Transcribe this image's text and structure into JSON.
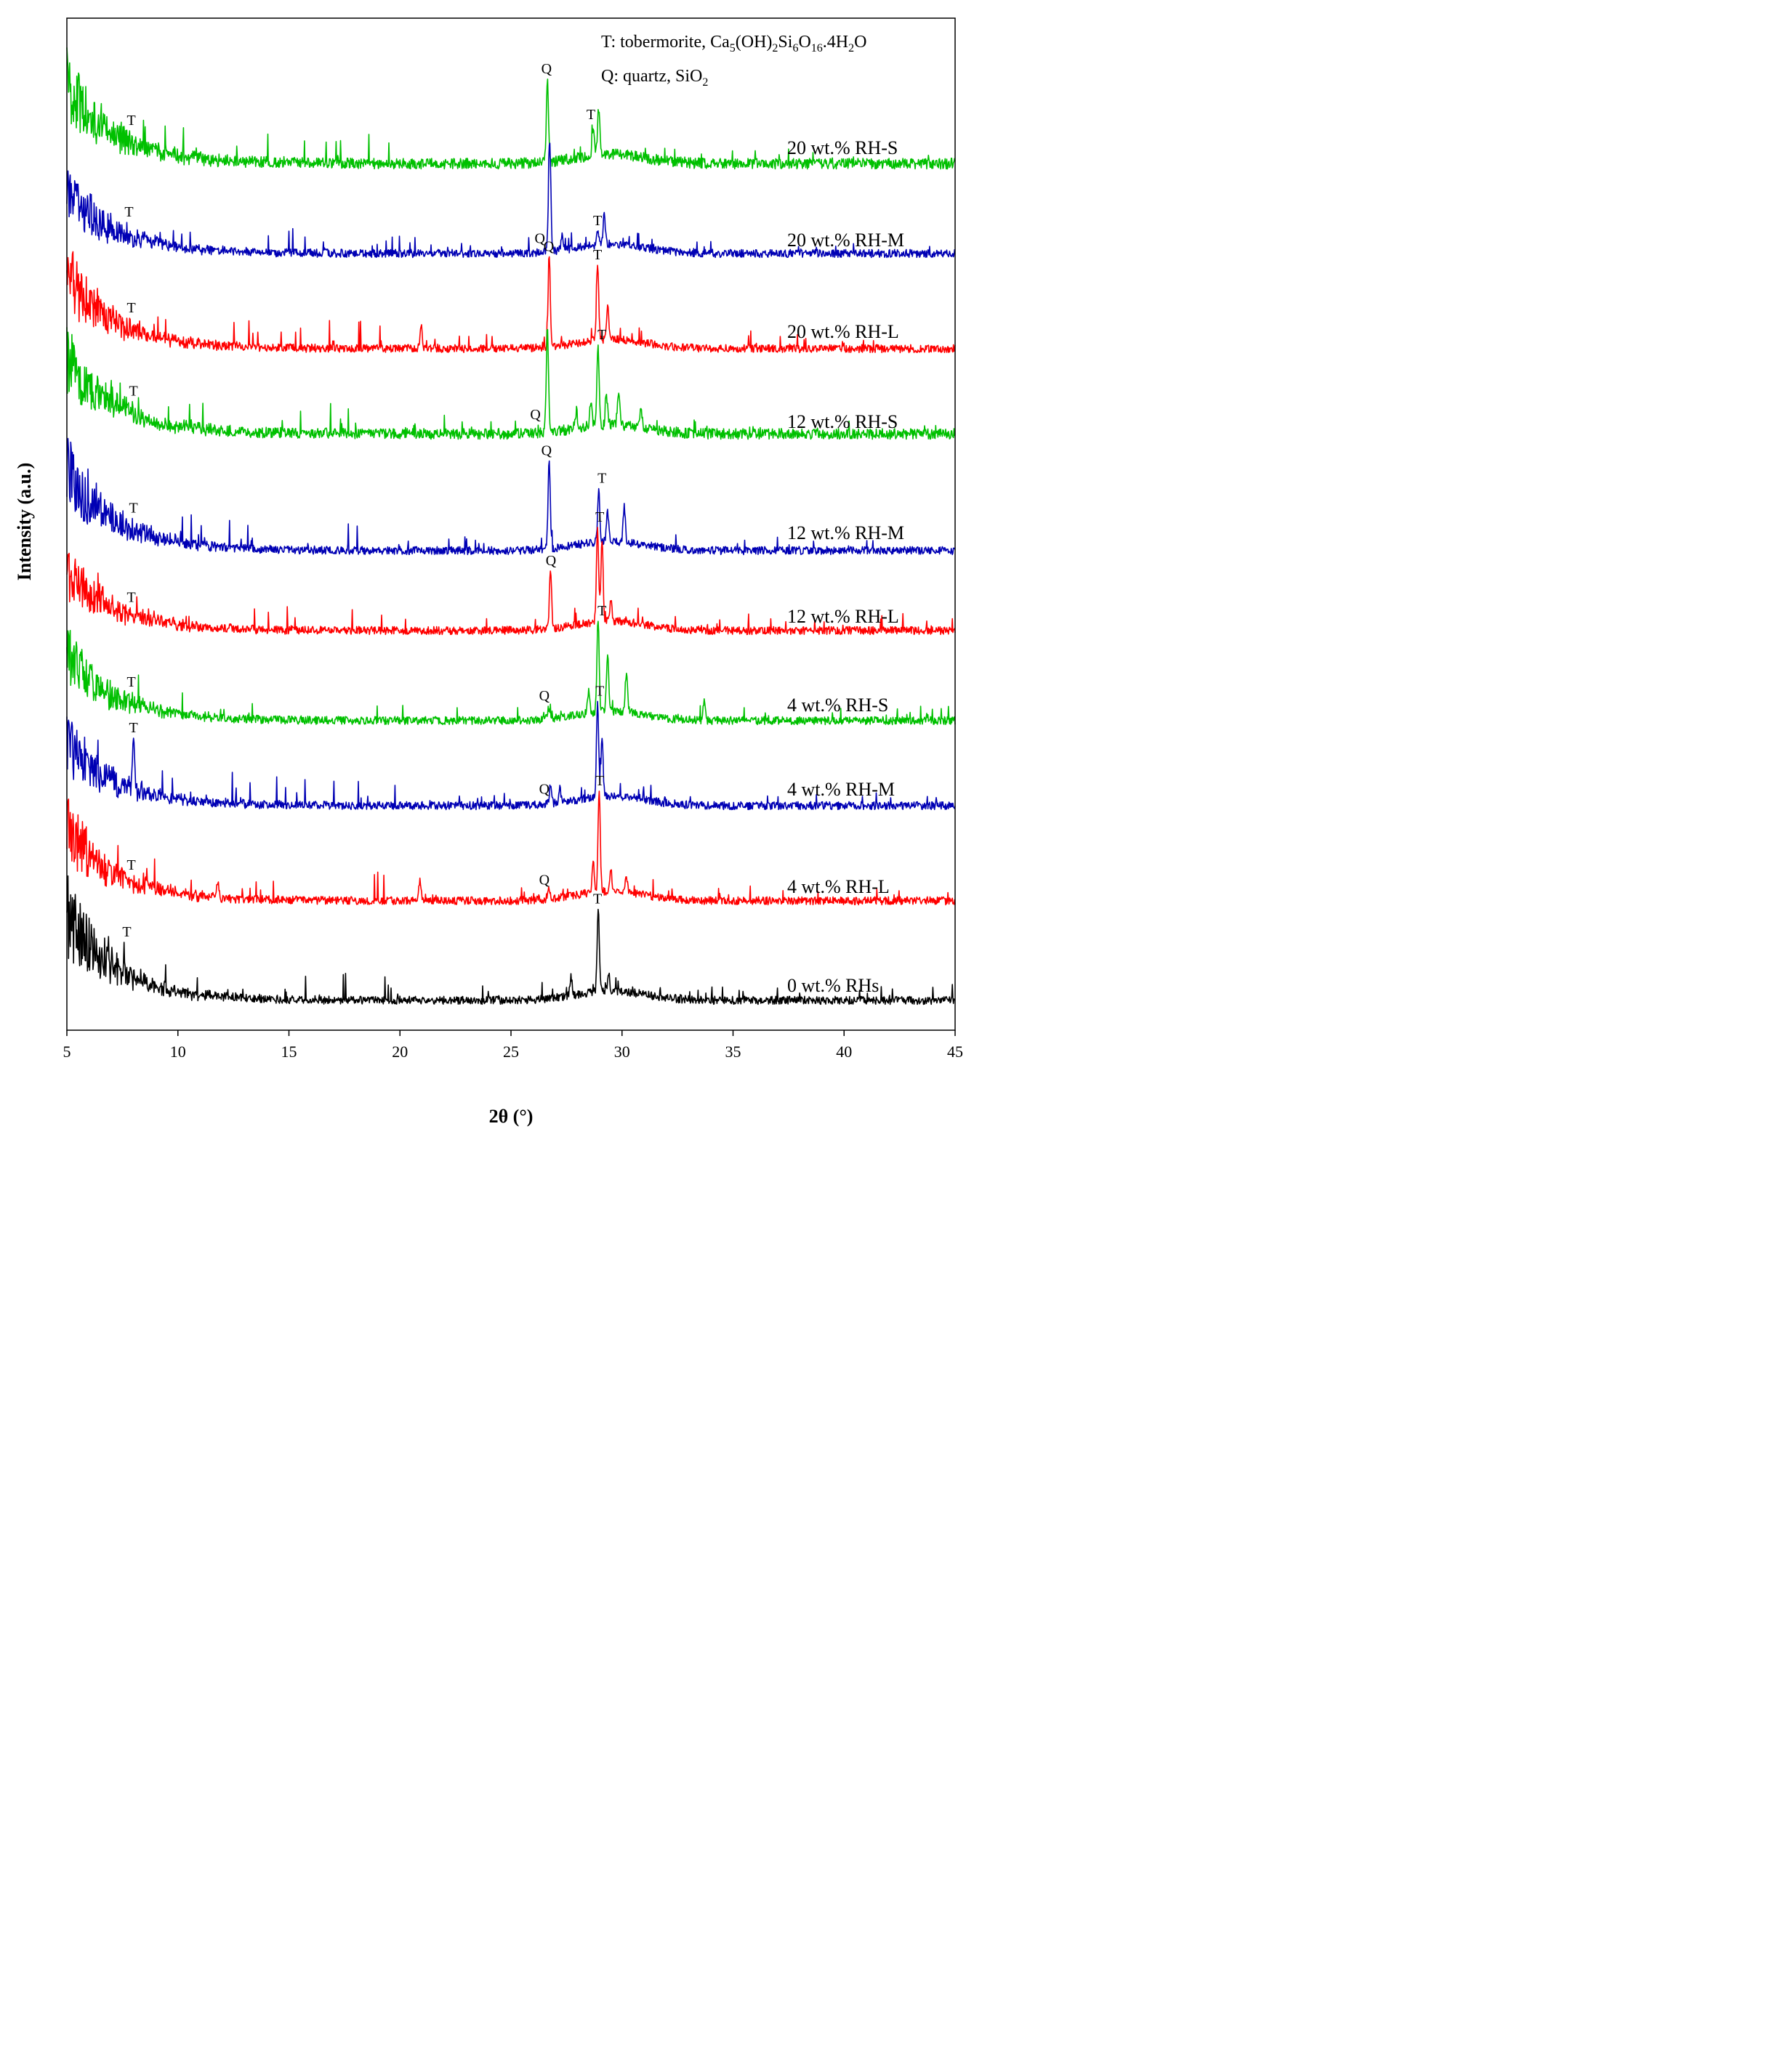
{
  "chart_data": {
    "type": "line",
    "xlabel": "2θ (°)",
    "ylabel": "Intensity (a.u.)",
    "xlim": [
      5,
      45
    ],
    "xticks": [
      5,
      10,
      15,
      20,
      25,
      30,
      35,
      40,
      45
    ],
    "y_ticks_shown": false,
    "grid": false,
    "legend": {
      "placement": "top-right",
      "entries": [
        {
          "prefix": "T: tobermorite, ",
          "formula": [
            [
              "Ca",
              ""
            ],
            [
              "5",
              "sub"
            ],
            [
              "(OH)",
              ""
            ],
            [
              "2",
              "sub"
            ],
            [
              "Si",
              ""
            ],
            [
              "6",
              "sub"
            ],
            [
              "O",
              ""
            ],
            [
              "16",
              "sub"
            ],
            [
              ".4H",
              ""
            ],
            [
              "2",
              "sub"
            ],
            [
              "O",
              ""
            ]
          ]
        },
        {
          "prefix": "Q: quartz, ",
          "formula": [
            [
              "SiO",
              ""
            ],
            [
              "2",
              "sub"
            ]
          ]
        }
      ]
    },
    "colors": {
      "green": "#00c000",
      "blue": "#0000b4",
      "red": "#ff0000",
      "black": "#000000"
    },
    "series": [
      {
        "name": "20 wt.% RH-S",
        "color": "#00c000",
        "baseline": 0.4,
        "low_angle_rise": 3.2,
        "peaks": [
          {
            "x": 26.64,
            "y": 3.0
          },
          {
            "x": 28.7,
            "y": 1.0
          },
          {
            "x": 28.95,
            "y": 1.7
          }
        ],
        "labels": [
          {
            "text": "T",
            "x": 7.9
          },
          {
            "text": "Q",
            "x": 26.6
          },
          {
            "text": "T",
            "x": 28.6
          }
        ]
      },
      {
        "name": "20 wt.% RH-M",
        "color": "#0000b4",
        "baseline": 0.3,
        "low_angle_rise": 2.6,
        "peaks": [
          {
            "x": 26.74,
            "y": 4.2
          },
          {
            "x": 27.3,
            "y": 0.6
          },
          {
            "x": 28.9,
            "y": 0.5
          },
          {
            "x": 29.2,
            "y": 1.1
          }
        ],
        "labels": [
          {
            "text": "T",
            "x": 7.8
          },
          {
            "text": "Q",
            "x": 26.3
          },
          {
            "text": "T",
            "x": 28.9
          }
        ]
      },
      {
        "name": "20 wt.% RH-L",
        "color": "#ff0000",
        "baseline": 0.3,
        "low_angle_rise": 3.0,
        "peaks": [
          {
            "x": 20.95,
            "y": 0.9
          },
          {
            "x": 26.72,
            "y": 3.4
          },
          {
            "x": 28.9,
            "y": 2.7
          },
          {
            "x": 29.35,
            "y": 1.2
          }
        ],
        "labels": [
          {
            "text": "T",
            "x": 7.9
          },
          {
            "text": "Q",
            "x": 26.7
          },
          {
            "text": "T",
            "x": 28.9
          }
        ]
      },
      {
        "name": "12 wt.% RH-S",
        "color": "#00c000",
        "baseline": 0.4,
        "low_angle_rise": 3.2,
        "peaks": [
          {
            "x": 26.64,
            "y": 3.9
          },
          {
            "x": 27.95,
            "y": 0.6
          },
          {
            "x": 28.6,
            "y": 0.9
          },
          {
            "x": 28.92,
            "y": 2.8
          },
          {
            "x": 29.3,
            "y": 1.0
          },
          {
            "x": 29.85,
            "y": 1.2
          },
          {
            "x": 30.85,
            "y": 0.6
          }
        ],
        "labels": [
          {
            "text": "T",
            "x": 8.0
          },
          {
            "text": "Q",
            "x": 26.1
          },
          {
            "text": "T",
            "x": 29.1
          }
        ]
      },
      {
        "name": "12 wt.% RH-M",
        "color": "#0000b4",
        "baseline": 0.3,
        "low_angle_rise": 3.4,
        "peaks": [
          {
            "x": 26.72,
            "y": 3.2
          },
          {
            "x": 28.95,
            "y": 1.9
          },
          {
            "x": 29.35,
            "y": 1.1
          },
          {
            "x": 30.1,
            "y": 1.3
          }
        ],
        "labels": [
          {
            "text": "T",
            "x": 8.0
          },
          {
            "text": "Q",
            "x": 26.6
          },
          {
            "text": "T",
            "x": 29.1
          }
        ]
      },
      {
        "name": "12 wt.% RH-L",
        "color": "#ff0000",
        "baseline": 0.3,
        "low_angle_rise": 2.4,
        "peaks": [
          {
            "x": 26.78,
            "y": 2.1
          },
          {
            "x": 28.9,
            "y": 3.5
          },
          {
            "x": 29.1,
            "y": 3.1
          },
          {
            "x": 29.5,
            "y": 0.8
          }
        ],
        "labels": [
          {
            "text": "T",
            "x": 7.9
          },
          {
            "text": "Q",
            "x": 26.8
          },
          {
            "text": "T",
            "x": 29.0
          }
        ]
      },
      {
        "name": "4 wt.% RH-S",
        "color": "#00c000",
        "baseline": 0.3,
        "low_angle_rise": 2.7,
        "peaks": [
          {
            "x": 26.7,
            "y": 0.4
          },
          {
            "x": 28.5,
            "y": 0.8
          },
          {
            "x": 28.92,
            "y": 3.4
          },
          {
            "x": 29.35,
            "y": 2.1
          },
          {
            "x": 30.2,
            "y": 1.5
          },
          {
            "x": 33.7,
            "y": 0.7
          }
        ],
        "labels": [
          {
            "text": "T",
            "x": 7.9
          },
          {
            "text": "Q",
            "x": 26.5
          },
          {
            "text": "T",
            "x": 29.1
          }
        ]
      },
      {
        "name": "4 wt.% RH-M",
        "color": "#0000b4",
        "baseline": 0.3,
        "low_angle_rise": 2.6,
        "peaks": [
          {
            "x": 8.0,
            "y": 2.0
          },
          {
            "x": 26.78,
            "y": 0.7
          },
          {
            "x": 27.2,
            "y": 0.5
          },
          {
            "x": 28.9,
            "y": 3.5
          },
          {
            "x": 29.1,
            "y": 2.2
          }
        ],
        "labels": [
          {
            "text": "T",
            "x": 8.0
          },
          {
            "text": "Q",
            "x": 26.5
          },
          {
            "text": "T",
            "x": 29.0
          }
        ]
      },
      {
        "name": "4 wt.% RH-L",
        "color": "#ff0000",
        "baseline": 0.3,
        "low_angle_rise": 3.0,
        "peaks": [
          {
            "x": 11.8,
            "y": 0.6
          },
          {
            "x": 20.9,
            "y": 0.7
          },
          {
            "x": 26.7,
            "y": 0.5
          },
          {
            "x": 28.7,
            "y": 1.2
          },
          {
            "x": 28.97,
            "y": 3.7
          },
          {
            "x": 29.5,
            "y": 0.8
          },
          {
            "x": 30.2,
            "y": 0.6
          }
        ],
        "labels": [
          {
            "text": "T",
            "x": 7.9
          },
          {
            "text": "Q",
            "x": 26.5
          },
          {
            "text": "T",
            "x": 29.0
          }
        ]
      },
      {
        "name": "0 wt.% RHs",
        "color": "#000000",
        "baseline": 0.3,
        "low_angle_rise": 3.6,
        "peaks": [
          {
            "x": 27.7,
            "y": 0.7
          },
          {
            "x": 28.93,
            "y": 3.0
          },
          {
            "x": 29.4,
            "y": 0.6
          }
        ],
        "labels": [
          {
            "text": "T",
            "x": 7.7
          },
          {
            "text": "T",
            "x": 28.9
          }
        ]
      }
    ]
  }
}
